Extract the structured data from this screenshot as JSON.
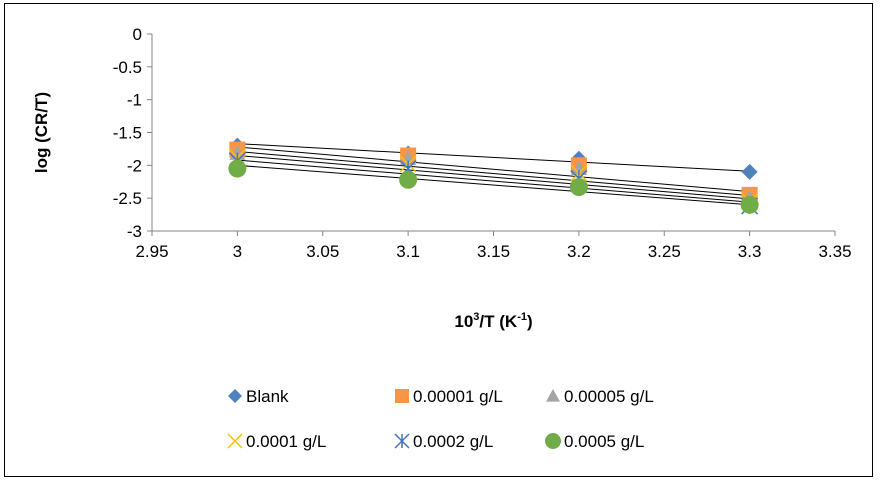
{
  "chart_data": {
    "type": "scatter",
    "xlabel": {
      "base": "10",
      "sup": "3",
      "rest": "/T  (K",
      "unit_sup": "-1",
      "close": ")"
    },
    "ylabel": "log (CR/T)",
    "xlim": [
      2.95,
      3.35
    ],
    "ylim": [
      -3,
      0
    ],
    "x_ticks": [
      "2.95",
      "3",
      "3.05",
      "3.1",
      "3.15",
      "3.2",
      "3.25",
      "3.3",
      "3.35"
    ],
    "y_ticks": [
      "0",
      "-0.5",
      "-1",
      "-1.5",
      "-2",
      "-2.5",
      "-3"
    ],
    "x": [
      3.0,
      3.1,
      3.2,
      3.3
    ],
    "grid": false,
    "legend_position": "bottom",
    "series": [
      {
        "name": "Blank",
        "marker": "diamond",
        "color": "#4F81BD",
        "values": [
          -1.7,
          -1.82,
          -1.9,
          -2.1
        ],
        "fit": [
          -1.67,
          -2.09
        ]
      },
      {
        "name": "0.00001 g/L",
        "marker": "square",
        "color": "#F79646",
        "values": [
          -1.76,
          -1.85,
          -2.0,
          -2.45
        ],
        "fit": [
          -1.72,
          -2.4
        ]
      },
      {
        "name": "0.00005 g/L",
        "marker": "triangle",
        "color": "#A5A5A5",
        "values": [
          -1.82,
          -1.9,
          -2.05,
          -2.5
        ],
        "fit": [
          -1.79,
          -2.46
        ]
      },
      {
        "name": "0.0001 g/L",
        "marker": "x",
        "color": "#FFC000",
        "values": [
          -1.88,
          -1.98,
          -2.12,
          -2.55
        ],
        "fit": [
          -1.85,
          -2.51
        ]
      },
      {
        "name": "0.0002 g/L",
        "marker": "asterisk",
        "color": "#4472C4",
        "values": [
          -1.93,
          -2.05,
          -2.2,
          -2.62
        ],
        "fit": [
          -1.92,
          -2.56
        ]
      },
      {
        "name": "0.0005 g/L",
        "marker": "circle",
        "color": "#70AD47",
        "values": [
          -2.05,
          -2.22,
          -2.33,
          -2.6
        ],
        "fit": [
          -2.0,
          -2.6
        ]
      }
    ]
  }
}
